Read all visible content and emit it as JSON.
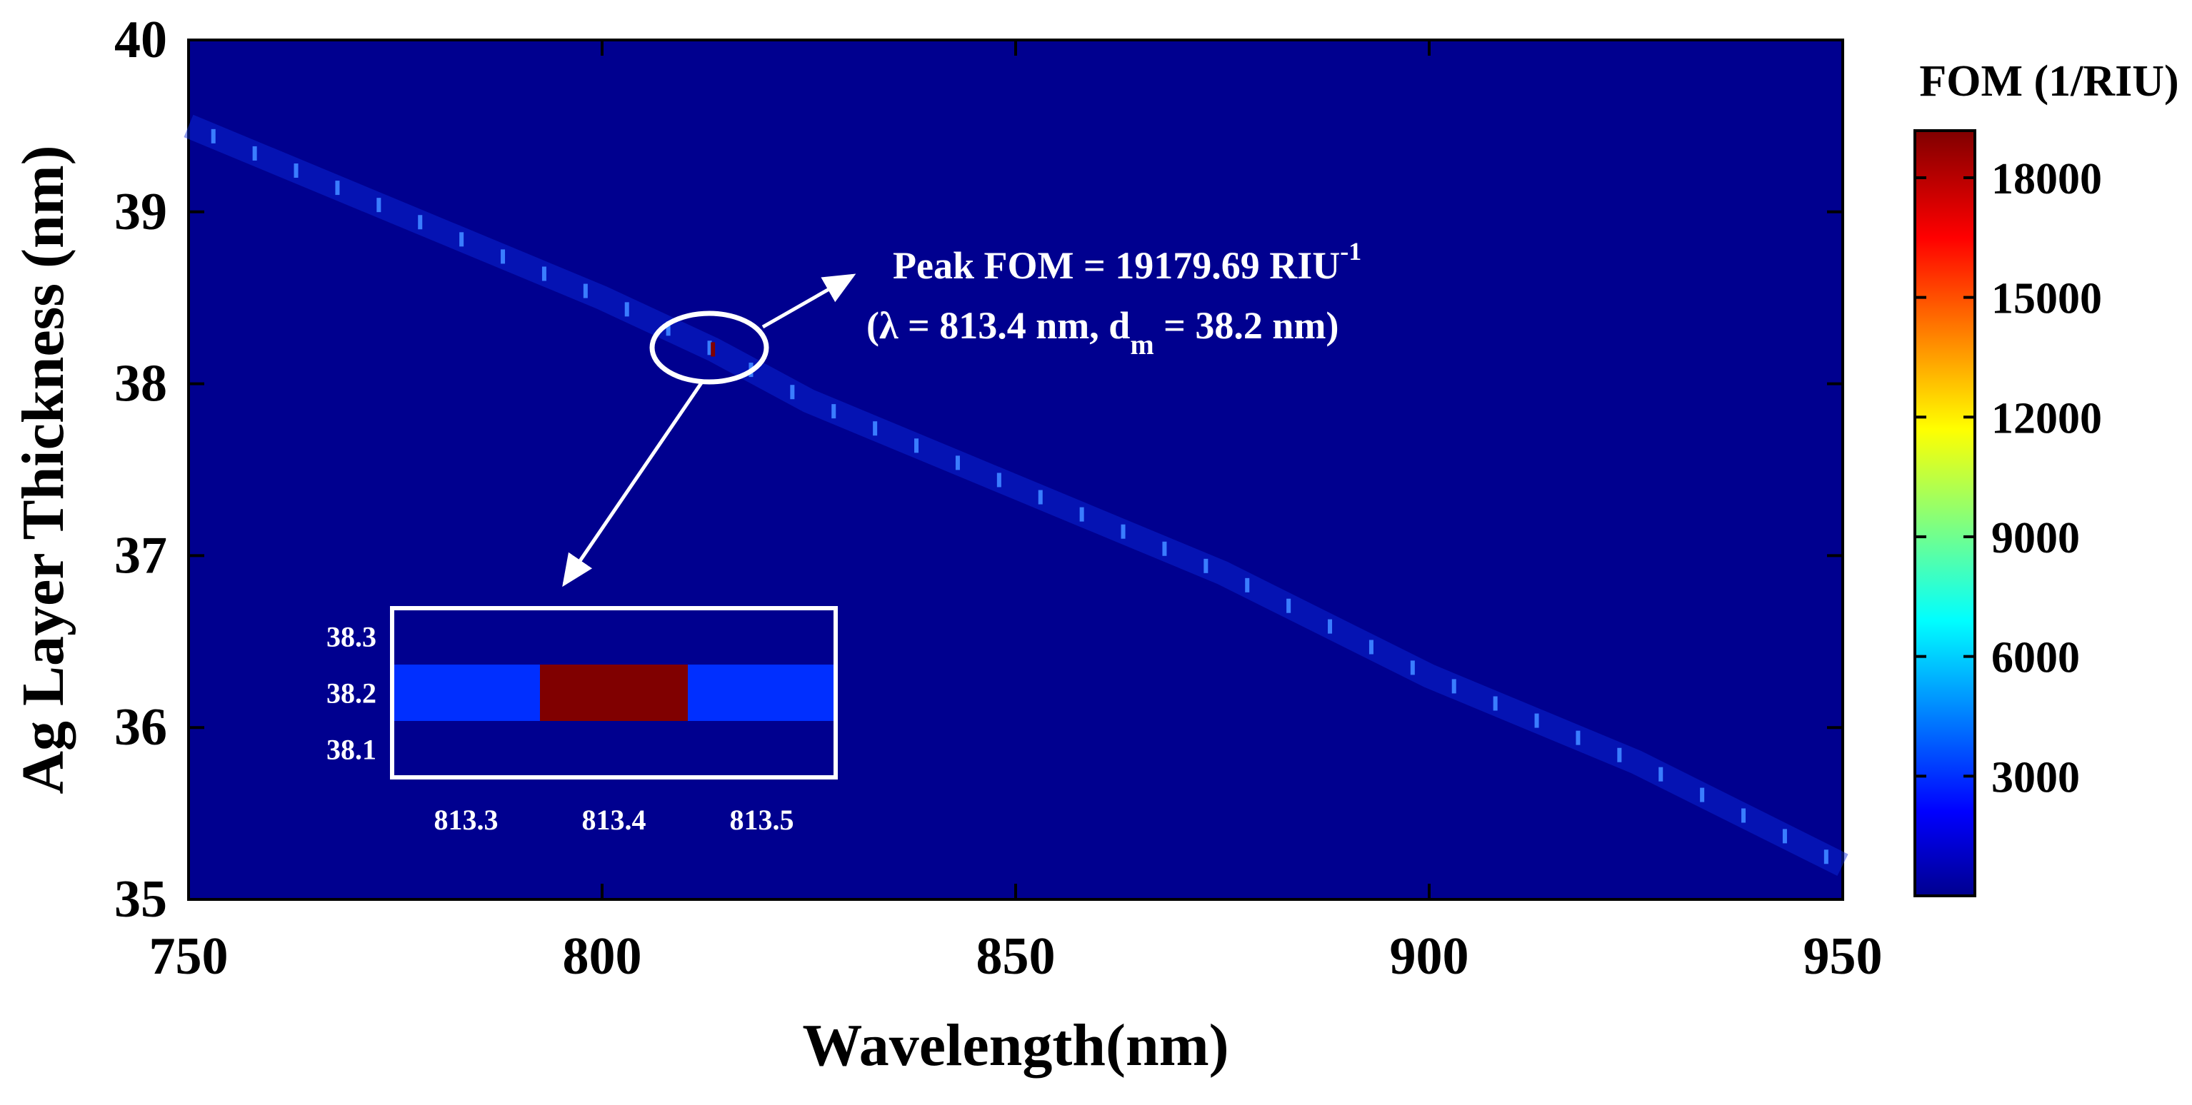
{
  "chart_data": {
    "type": "heatmap",
    "xlabel": "Wavelength(nm)",
    "ylabel": "Ag Layer Thickness (nm)",
    "xlim": [
      750,
      950
    ],
    "ylim": [
      35,
      40
    ],
    "x_ticks": [
      "750",
      "800",
      "850",
      "900",
      "950"
    ],
    "y_ticks": [
      "35",
      "36",
      "37",
      "38",
      "39",
      "40"
    ],
    "colorbar": {
      "title": "FOM (1/RIU)",
      "range": [
        0,
        19180
      ],
      "ticks": [
        "3000",
        "6000",
        "9000",
        "12000",
        "15000",
        "18000"
      ],
      "colormap": "jet"
    },
    "background_color": "#00008f",
    "resonance_ridge": {
      "x": [
        750,
        775,
        800,
        813.4,
        825,
        850,
        875,
        900,
        925,
        950
      ],
      "y": [
        39.5,
        39.0,
        38.5,
        38.2,
        37.9,
        37.4,
        36.9,
        36.3,
        35.8,
        35.2
      ],
      "fom": [
        2500,
        2700,
        2900,
        19179.69,
        3000,
        3000,
        3100,
        3200,
        3300,
        3400
      ]
    },
    "annotation": {
      "line1_main": "Peak FOM = 19179.69 RIU",
      "line1_sup": "-1",
      "line2_pre": "(λ = 813.4 nm, d",
      "line2_sub": "m",
      "line2_post": " = 38.2 nm)"
    },
    "inset": {
      "x_ticks": [
        "813.3",
        "813.4",
        "813.5"
      ],
      "y_ticks": [
        "38.3",
        "38.2",
        "38.1"
      ],
      "cells": [
        {
          "x": 813.3,
          "y": 38.2,
          "fom": 3000
        },
        {
          "x": 813.4,
          "y": 38.2,
          "fom": 19179.69
        },
        {
          "x": 813.5,
          "y": 38.2,
          "fom": 3000
        }
      ]
    }
  }
}
